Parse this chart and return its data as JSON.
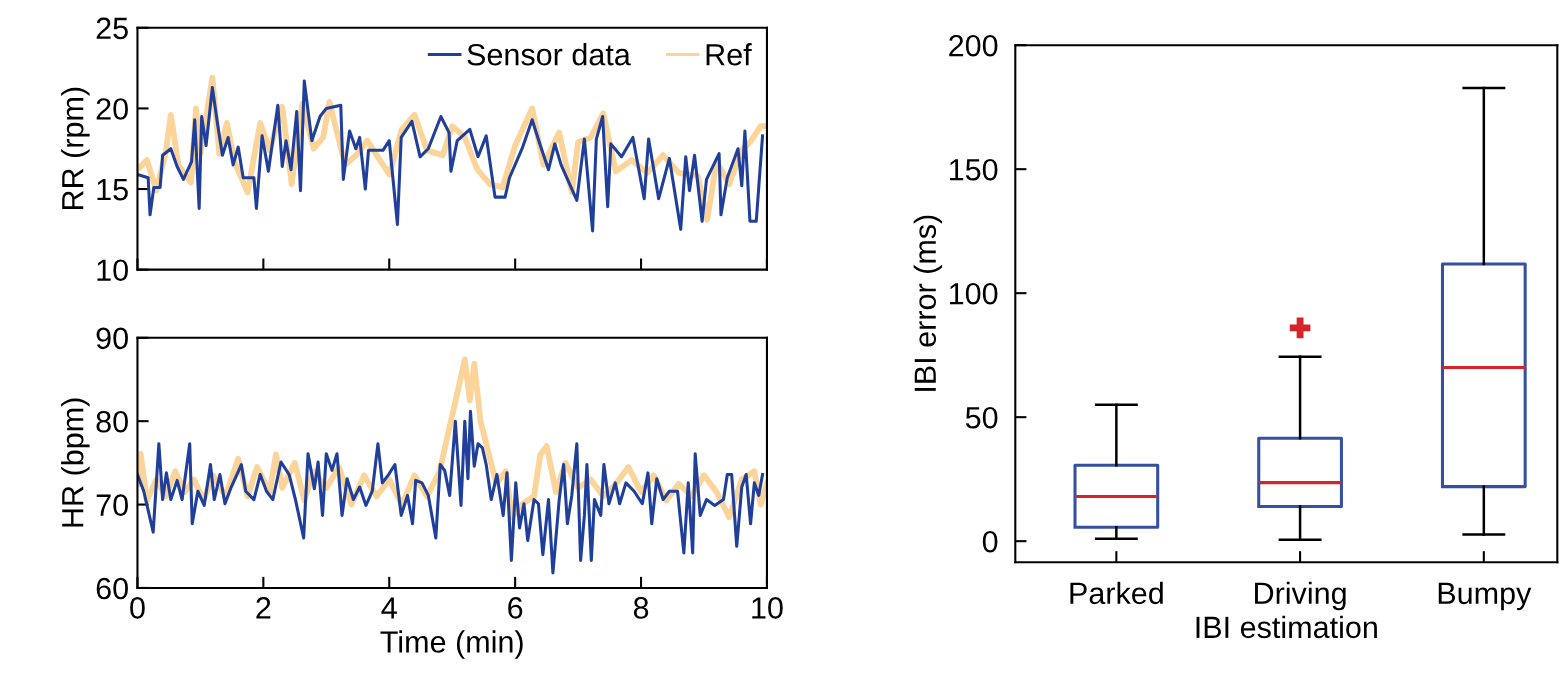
{
  "chart_data": [
    {
      "type": "line",
      "ylabel": "RR (rpm)",
      "xlim": [
        0,
        10
      ],
      "xticks": [
        {
          "value": 0,
          "label": null
        },
        {
          "value": 2,
          "label": null
        },
        {
          "value": 4,
          "label": null
        },
        {
          "value": 6,
          "label": null
        },
        {
          "value": 8,
          "label": null
        },
        {
          "value": 10,
          "label": null
        }
      ],
      "ylim": [
        10,
        25
      ],
      "yticks": [
        10,
        15,
        20,
        25
      ],
      "tick_labels": "y",
      "legend": "top right",
      "grid": false,
      "series": [
        {
          "name": "Ref",
          "color": "#fbd49a",
          "x": [
            0,
            0.15,
            0.3,
            0.45,
            0.53,
            0.65,
            0.85,
            0.93,
            1.0,
            1.19,
            1.3,
            1.42,
            1.55,
            1.75,
            1.95,
            2.1,
            2.3,
            2.45,
            2.62,
            2.8,
            2.95,
            3.05,
            3.3,
            3.5,
            3.65,
            4.0,
            4.2,
            4.4,
            4.6,
            4.85,
            5.0,
            5.2,
            5.4,
            5.6,
            5.8,
            6.0,
            6.27,
            6.45,
            6.7,
            6.9,
            7.0,
            7.2,
            7.4,
            7.6,
            7.85,
            8.1,
            8.35,
            8.6,
            8.9,
            9.05,
            9.2,
            9.4,
            9.6,
            9.75,
            9.9,
            10
          ],
          "values": [
            16.2,
            16.8,
            14.9,
            17.3,
            19.6,
            16.5,
            15.4,
            20.0,
            17.2,
            21.9,
            17.2,
            19.1,
            16.6,
            14.8,
            19.1,
            17.4,
            20.1,
            15.3,
            20.3,
            17.5,
            18.2,
            20.4,
            16.5,
            17.2,
            18.0,
            15.9,
            18.7,
            19.6,
            17.4,
            17.1,
            18.9,
            18.2,
            16.2,
            15.3,
            15.1,
            17.7,
            20.0,
            16.5,
            18.5,
            14.8,
            17.9,
            18.2,
            19.7,
            16.1,
            16.8,
            16.0,
            17.1,
            16.0,
            15.8,
            13.1,
            16.7,
            15.3,
            17.4,
            18.0,
            18.9,
            18.9
          ]
        },
        {
          "name": "Sensor data",
          "color": "#1f3f9a",
          "x": [
            0,
            0.17,
            0.2,
            0.26,
            0.36,
            0.4,
            0.53,
            0.63,
            0.73,
            0.86,
            0.91,
            0.98,
            1.02,
            1.09,
            1.19,
            1.27,
            1.35,
            1.44,
            1.52,
            1.6,
            1.68,
            1.85,
            1.89,
            1.98,
            2.08,
            2.23,
            2.3,
            2.36,
            2.44,
            2.53,
            2.59,
            2.65,
            2.77,
            2.9,
            3.0,
            3.23,
            3.27,
            3.37,
            3.47,
            3.53,
            3.62,
            3.67,
            3.9,
            4.0,
            4.13,
            4.19,
            4.36,
            4.49,
            4.62,
            4.82,
            4.95,
            4.98,
            5.08,
            5.28,
            5.41,
            5.54,
            5.68,
            5.84,
            5.91,
            6.11,
            6.27,
            6.4,
            6.53,
            6.63,
            6.73,
            6.98,
            7.1,
            7.23,
            7.29,
            7.39,
            7.47,
            7.52,
            7.69,
            7.87,
            8.05,
            8.12,
            8.28,
            8.45,
            8.63,
            8.71,
            8.77,
            8.85,
            8.97,
            9.04,
            9.24,
            9.27,
            9.37,
            9.54,
            9.6,
            9.65,
            9.73,
            9.83,
            9.93
          ],
          "values": [
            15.9,
            15.7,
            13.4,
            15.1,
            15.1,
            17.1,
            17.5,
            16.4,
            15.6,
            16.7,
            19.3,
            13.8,
            19.5,
            17.7,
            21.3,
            19.1,
            17.1,
            18.2,
            16.5,
            17.6,
            15.7,
            15.7,
            13.8,
            18.3,
            16.1,
            20.2,
            16.4,
            18.0,
            16.2,
            19.8,
            14.9,
            21.7,
            18.0,
            19.5,
            20.0,
            20.2,
            15.6,
            18.6,
            17.5,
            18.2,
            15.0,
            17.4,
            17.4,
            18.0,
            12.8,
            18.2,
            19.2,
            17.0,
            17.5,
            19.5,
            18.5,
            16.1,
            18.0,
            18.7,
            17.0,
            18.3,
            14.5,
            14.5,
            15.7,
            17.5,
            19.3,
            17.7,
            16.2,
            17.8,
            16.5,
            14.3,
            18.1,
            12.4,
            18.1,
            19.5,
            13.9,
            17.8,
            17.0,
            18.2,
            14.4,
            18.1,
            14.4,
            16.9,
            12.5,
            17.0,
            14.9,
            17.1,
            13.0,
            15.6,
            17.2,
            13.4,
            15.7,
            17.5,
            15.2,
            18.6,
            13.0,
            13.0,
            18.3
          ]
        }
      ]
    },
    {
      "type": "line",
      "ylabel": "HR (bpm)",
      "xlabel": "Time (min)",
      "xlim": [
        0,
        10
      ],
      "xticks": [
        0,
        2,
        4,
        6,
        8,
        10
      ],
      "ylim": [
        60,
        90
      ],
      "yticks": [
        60,
        70,
        80,
        90
      ],
      "grid": false,
      "series": [
        {
          "color": "#fbd49a",
          "x": [
            0,
            0.05,
            0.15,
            0.3,
            0.45,
            0.6,
            0.75,
            0.9,
            1.05,
            1.2,
            1.4,
            1.6,
            1.75,
            1.9,
            2.1,
            2.2,
            2.3,
            2.5,
            2.65,
            2.8,
            3.0,
            3.2,
            3.4,
            3.6,
            3.8,
            4.0,
            4.2,
            4.4,
            4.6,
            4.8,
            4.95,
            5.1,
            5.2,
            5.28,
            5.35,
            5.45,
            5.55,
            5.7,
            5.85,
            5.95,
            6.1,
            6.3,
            6.4,
            6.5,
            6.65,
            6.8,
            7.0,
            7.2,
            7.4,
            7.6,
            7.8,
            8.0,
            8.2,
            8.4,
            8.6,
            8.8,
            9.0,
            9.2,
            9.4,
            9.6,
            9.8,
            9.9,
            10
          ],
          "values": [
            72.5,
            76.1,
            70.5,
            73,
            71,
            74,
            71.5,
            73,
            70.5,
            73.5,
            71,
            75.5,
            71,
            74.5,
            71.5,
            76,
            72,
            75,
            70.5,
            74,
            72,
            74.5,
            70,
            73.5,
            71,
            73,
            70,
            73.5,
            71,
            74,
            79,
            84,
            87.4,
            82.5,
            86.9,
            80,
            77,
            72.5,
            74,
            68.5,
            70,
            71,
            76,
            77,
            71.5,
            75,
            72,
            73,
            71,
            72.5,
            74.5,
            71.5,
            73.5,
            70.5,
            72.5,
            71,
            73.5,
            71.5,
            68.5,
            73,
            74,
            70,
            72.5
          ]
        },
        {
          "color": "#1f3f9a",
          "x": [
            0,
            0.1,
            0.25,
            0.34,
            0.4,
            0.46,
            0.53,
            0.63,
            0.71,
            0.83,
            0.87,
            0.96,
            1.06,
            1.16,
            1.22,
            1.31,
            1.39,
            1.49,
            1.58,
            1.65,
            1.72,
            1.85,
            1.95,
            2.05,
            2.15,
            2.28,
            2.41,
            2.51,
            2.64,
            2.71,
            2.81,
            2.87,
            2.94,
            3.0,
            3.09,
            3.17,
            3.25,
            3.33,
            3.43,
            3.53,
            3.63,
            3.73,
            3.82,
            3.89,
            3.99,
            4.09,
            4.19,
            4.29,
            4.37,
            4.42,
            4.52,
            4.62,
            4.74,
            4.81,
            4.88,
            4.96,
            5.05,
            5.14,
            5.2,
            5.25,
            5.29,
            5.35,
            5.41,
            5.48,
            5.54,
            5.62,
            5.71,
            5.81,
            5.87,
            5.94,
            6.01,
            6.07,
            6.14,
            6.2,
            6.3,
            6.37,
            6.44,
            6.53,
            6.6,
            6.7,
            6.77,
            6.83,
            6.9,
            6.98,
            7.04,
            7.1,
            7.14,
            7.21,
            7.26,
            7.36,
            7.41,
            7.49,
            7.59,
            7.66,
            7.76,
            7.89,
            8.02,
            8.11,
            8.17,
            8.25,
            8.35,
            8.45,
            8.58,
            8.68,
            8.75,
            8.82,
            8.86,
            8.94,
            9.04,
            9.17,
            9.31,
            9.37,
            9.44,
            9.52,
            9.6,
            9.67,
            9.74,
            9.8,
            9.87,
            9.93
          ],
          "values": [
            73.6,
            71.6,
            66.7,
            77.3,
            70.6,
            73.8,
            70.6,
            72.9,
            70.6,
            77.3,
            67.7,
            71.6,
            69.9,
            74.8,
            70.6,
            73.6,
            70.1,
            72.1,
            73.6,
            74.8,
            71.6,
            70.6,
            73.6,
            71.6,
            70.6,
            75.1,
            73.6,
            70.6,
            66.0,
            76.1,
            71.9,
            75.1,
            68.7,
            76.1,
            74.1,
            76.1,
            68.7,
            73.1,
            70.6,
            72.1,
            69.9,
            71.6,
            77.3,
            72.6,
            73.6,
            74.8,
            68.7,
            71.1,
            67.7,
            72.9,
            72.6,
            71.1,
            66.0,
            74.8,
            74.1,
            71.1,
            80.0,
            69.9,
            80.0,
            73.1,
            81.2,
            74.6,
            77.3,
            76.8,
            74.8,
            70.6,
            73.6,
            68.7,
            73.8,
            63.3,
            72.6,
            67.2,
            70.1,
            65.7,
            70.6,
            70.1,
            64.0,
            70.6,
            61.8,
            70.6,
            74.8,
            67.7,
            71.1,
            77.3,
            63.3,
            68.7,
            74.8,
            63.3,
            70.6,
            68.7,
            74.8,
            70.1,
            72.6,
            70.1,
            72.6,
            71.6,
            70.1,
            73.8,
            67.7,
            73.1,
            70.6,
            71.6,
            71.6,
            64.2,
            72.6,
            64.2,
            76.1,
            68.7,
            70.6,
            69.9,
            70.6,
            73.6,
            73.6,
            65.0,
            72.1,
            73.6,
            67.7,
            72.6,
            71.1,
            73.6
          ]
        }
      ]
    },
    {
      "type": "box",
      "xlabel": "IBI estimation",
      "ylabel": "IBI error (ms)",
      "categories": [
        "Parked",
        "Driving",
        "Bumpy"
      ],
      "ylim": [
        -8.5,
        200
      ],
      "yticks": [
        0,
        50,
        100,
        150,
        200
      ],
      "grid": false,
      "color": "#3550a0",
      "boxes": [
        {
          "low": 1,
          "q1": 5.6,
          "median": 18,
          "q3": 30.6,
          "high": 55
        },
        {
          "low": 0.6,
          "q1": 14,
          "median": 23.6,
          "q3": 41.5,
          "high": 74.4,
          "outliers": [
            86
          ]
        },
        {
          "low": 2.7,
          "q1": 22,
          "median": 70,
          "q3": 111.8,
          "high": 182.7
        }
      ]
    }
  ]
}
